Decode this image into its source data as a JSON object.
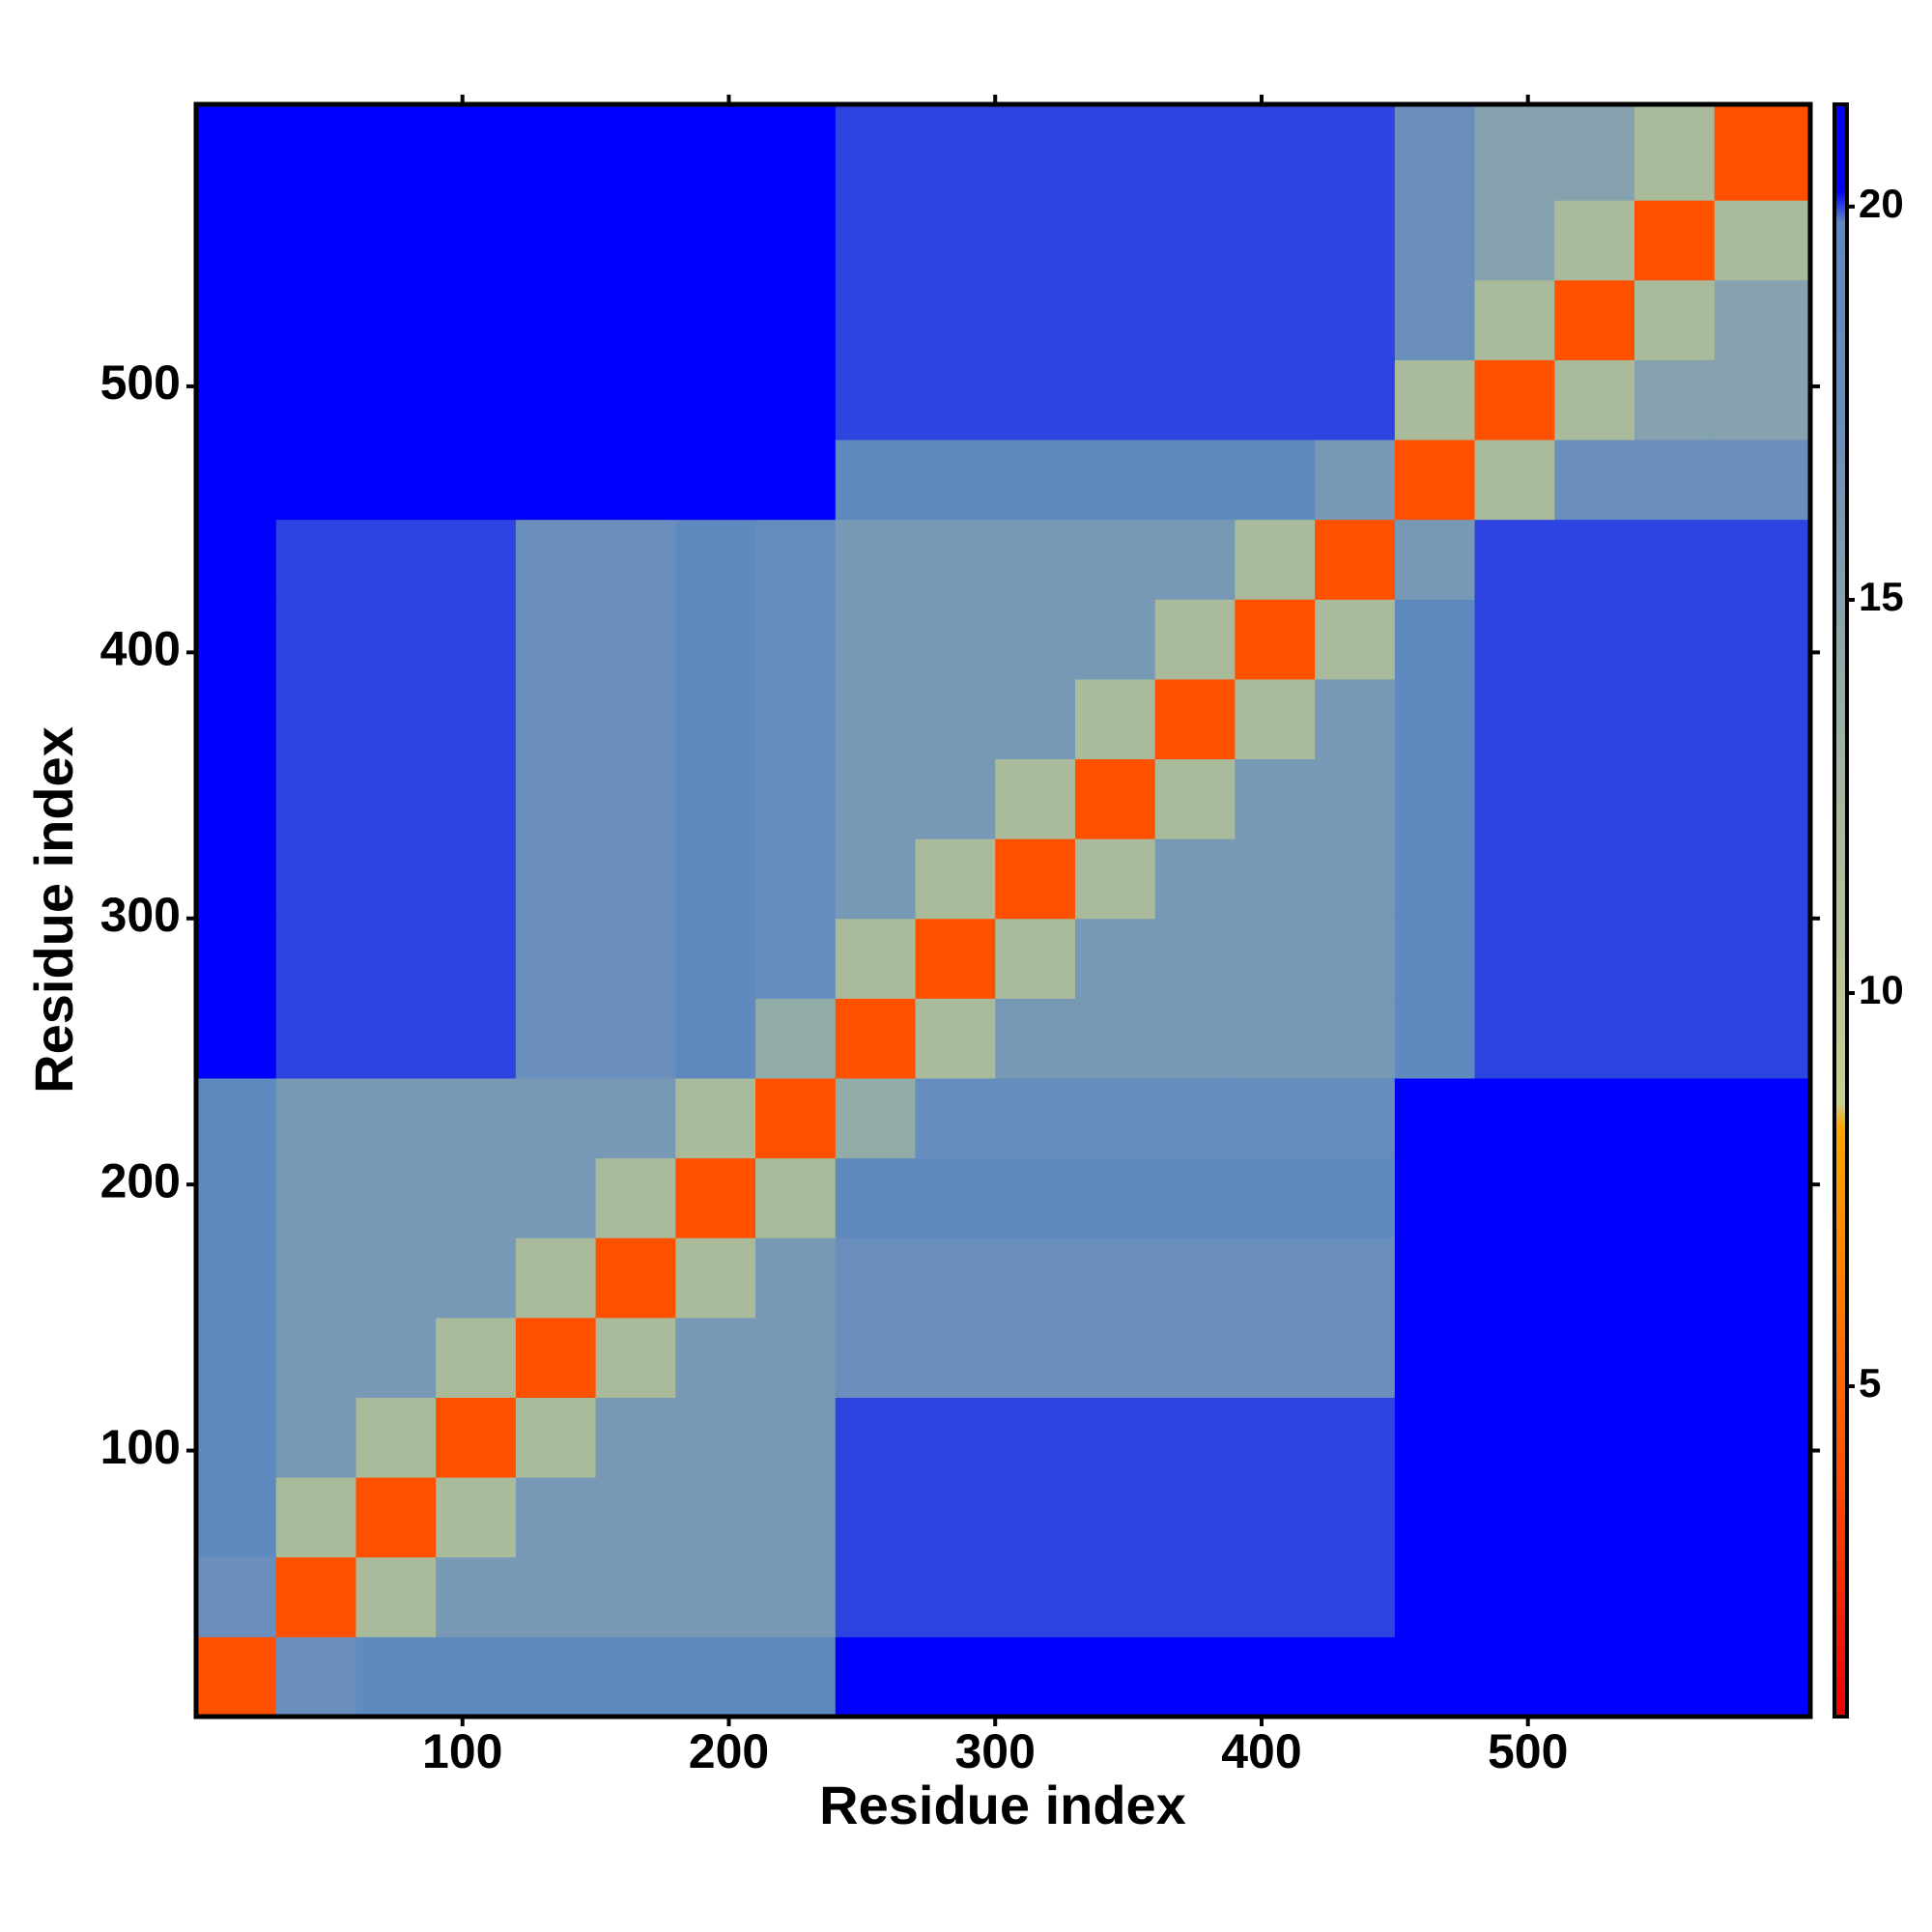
{
  "chart_data": {
    "type": "heatmap",
    "xlabel": "Residue index",
    "ylabel": "Residue index",
    "xlim": [
      0,
      606
    ],
    "ylim": [
      0,
      606
    ],
    "xticks": [
      100,
      200,
      300,
      400,
      500
    ],
    "yticks": [
      100,
      200,
      300,
      400,
      500
    ],
    "x_edges": [
      0,
      30,
      60,
      90,
      120,
      150,
      180,
      210,
      240,
      270,
      300,
      330,
      360,
      390,
      420,
      450,
      480,
      510,
      540,
      570,
      606
    ],
    "y_edges": [
      0,
      30,
      60,
      90,
      120,
      150,
      180,
      210,
      240,
      270,
      300,
      330,
      360,
      390,
      420,
      450,
      480,
      510,
      540,
      570,
      606
    ],
    "z": [
      [
        4,
        17,
        19,
        19,
        19,
        19,
        19,
        19,
        21,
        21,
        21,
        21,
        21,
        21,
        21,
        21,
        21,
        21,
        21,
        21
      ],
      [
        17,
        4,
        12,
        16,
        16,
        16,
        16,
        16,
        20,
        20,
        20,
        20,
        20,
        20,
        20,
        21,
        21,
        21,
        21,
        21
      ],
      [
        19,
        12,
        4,
        12,
        16,
        16,
        16,
        16,
        20,
        20,
        20,
        20,
        20,
        20,
        20,
        21,
        21,
        21,
        21,
        21
      ],
      [
        19,
        16,
        12,
        4,
        12,
        16,
        16,
        16,
        20,
        20,
        20,
        20,
        20,
        20,
        20,
        21,
        21,
        21,
        21,
        21
      ],
      [
        19,
        16,
        16,
        12,
        4,
        12,
        16,
        16,
        17,
        17,
        17,
        17,
        17,
        17,
        17,
        21,
        21,
        21,
        21,
        21
      ],
      [
        19,
        16,
        16,
        16,
        12,
        4,
        12,
        16,
        17,
        17,
        17,
        17,
        17,
        17,
        17,
        21,
        21,
        21,
        21,
        21
      ],
      [
        19,
        16,
        16,
        16,
        16,
        12,
        4,
        12,
        19,
        19,
        19,
        19,
        19,
        19,
        19,
        21,
        21,
        21,
        21,
        21
      ],
      [
        19,
        16,
        16,
        16,
        16,
        16,
        12,
        4,
        14,
        18,
        18,
        18,
        18,
        18,
        18,
        21,
        21,
        21,
        21,
        21
      ],
      [
        21,
        20,
        20,
        20,
        17,
        17,
        19,
        14,
        4,
        12,
        16,
        16,
        16,
        16,
        16,
        19,
        20,
        20,
        20,
        20
      ],
      [
        21,
        20,
        20,
        20,
        17,
        17,
        19,
        18,
        12,
        4,
        12,
        16,
        16,
        16,
        16,
        19,
        20,
        20,
        20,
        20
      ],
      [
        21,
        20,
        20,
        20,
        17,
        17,
        19,
        18,
        16,
        12,
        4,
        12,
        16,
        16,
        16,
        19,
        20,
        20,
        20,
        20
      ],
      [
        21,
        20,
        20,
        20,
        17,
        17,
        19,
        18,
        16,
        16,
        12,
        4,
        12,
        16,
        16,
        19,
        20,
        20,
        20,
        20
      ],
      [
        21,
        20,
        20,
        20,
        17,
        17,
        19,
        18,
        16,
        16,
        16,
        12,
        4,
        12,
        16,
        19,
        20,
        20,
        20,
        20
      ],
      [
        21,
        20,
        20,
        20,
        17,
        17,
        19,
        18,
        16,
        16,
        16,
        16,
        12,
        4,
        12,
        19,
        20,
        20,
        20,
        20
      ],
      [
        21,
        20,
        20,
        20,
        17,
        17,
        19,
        18,
        16,
        16,
        16,
        16,
        16,
        12,
        4,
        16,
        20,
        20,
        20,
        20
      ],
      [
        21,
        21,
        21,
        21,
        21,
        21,
        21,
        21,
        19,
        19,
        19,
        19,
        19,
        19,
        16,
        4,
        12,
        17,
        17,
        17
      ],
      [
        21,
        21,
        21,
        21,
        21,
        21,
        21,
        21,
        20,
        20,
        20,
        20,
        20,
        20,
        20,
        12,
        4,
        12,
        15,
        15
      ],
      [
        21,
        21,
        21,
        21,
        21,
        21,
        21,
        21,
        20,
        20,
        20,
        20,
        20,
        20,
        20,
        17,
        12,
        4,
        12,
        15
      ],
      [
        21,
        21,
        21,
        21,
        21,
        21,
        21,
        21,
        20,
        20,
        20,
        20,
        20,
        20,
        20,
        17,
        15,
        12,
        4,
        12
      ],
      [
        21,
        21,
        21,
        21,
        21,
        21,
        21,
        21,
        20,
        20,
        20,
        20,
        20,
        20,
        20,
        17,
        15,
        15,
        12,
        4
      ]
    ],
    "colorbar": {
      "lim": [
        0.8,
        21.3
      ],
      "ticks": [
        5,
        10,
        15,
        20
      ],
      "scale": [
        [
          0.8,
          "#ee0000"
        ],
        [
          4,
          "#ff5000"
        ],
        [
          8.3,
          "#ffa500"
        ],
        [
          8.6,
          "#c9d08c"
        ],
        [
          13,
          "#9fb5a0"
        ],
        [
          17,
          "#6a8fbc"
        ],
        [
          19.8,
          "#5b88c2"
        ],
        [
          20.2,
          "#0000ff"
        ],
        [
          21.3,
          "#0000ff"
        ]
      ]
    }
  }
}
